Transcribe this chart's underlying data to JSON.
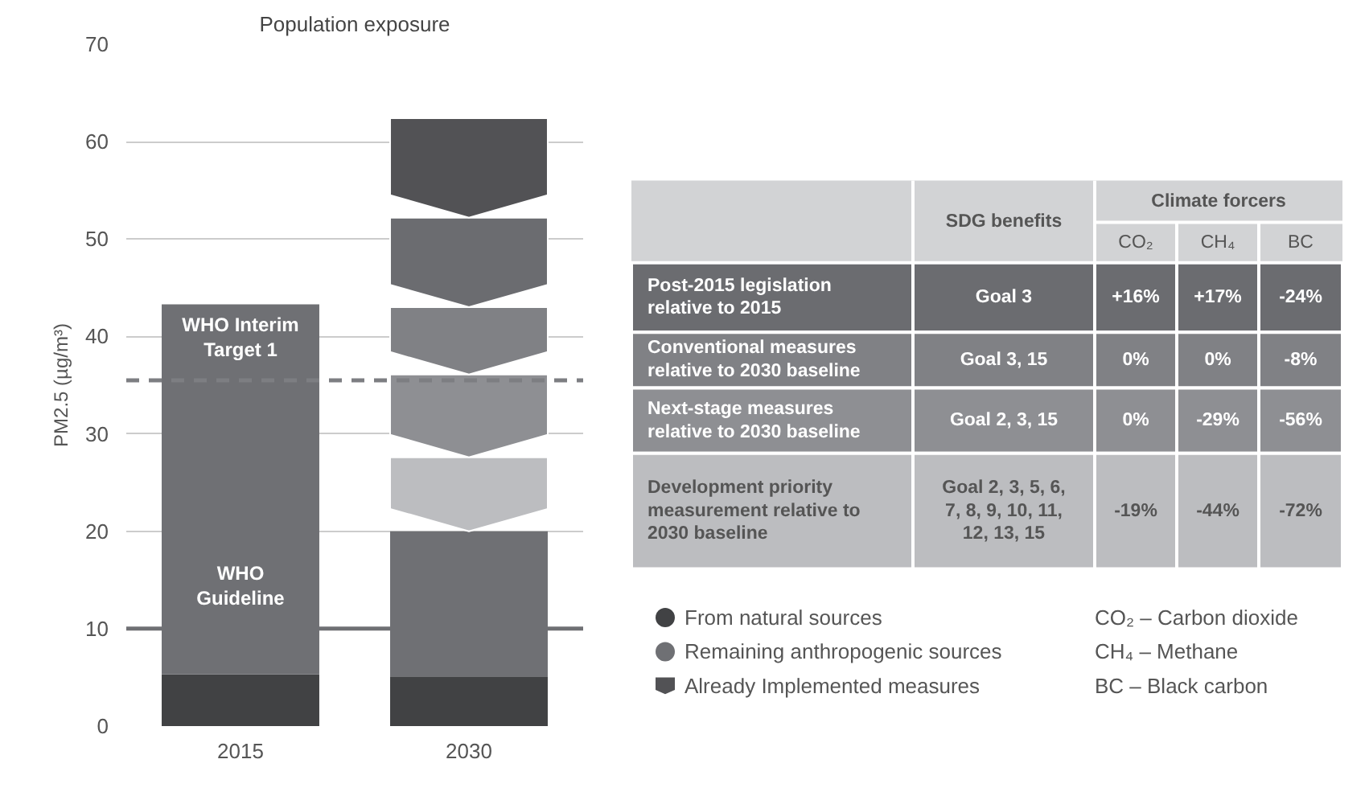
{
  "chart_data": {
    "type": "bar",
    "title": "Population exposure",
    "ylabel": "PM2.5 (µg/m³)",
    "categories": [
      "2015",
      "2030"
    ],
    "stacked": true,
    "series": [
      {
        "name": "From natural sources",
        "color": "#414244",
        "values": [
          5.3,
          5.1
        ]
      },
      {
        "name": "Remaining anthropogenic sources",
        "color": "#6f7074",
        "values": [
          38.0,
          14.9
        ]
      },
      {
        "color": "#bcbdc0",
        "values": [
          null,
          7.6
        ]
      },
      {
        "color": "#8e8f93",
        "values": [
          null,
          8.5
        ]
      },
      {
        "color": "#808185",
        "values": [
          null,
          6.9
        ]
      },
      {
        "color": "#6b6c70",
        "values": [
          null,
          9.2
        ]
      },
      {
        "name": "Already Implemented measures",
        "color": "#525255",
        "values": [
          null,
          10.2
        ]
      }
    ],
    "ylim": [
      0,
      70
    ],
    "yticks": [
      0,
      10,
      20,
      30,
      40,
      50,
      60,
      70
    ],
    "grid": "y",
    "legend": "bottom right",
    "ref_lines": [
      {
        "axis": "y",
        "value": 35.5,
        "label": "WHO Interim\nTarget 1",
        "line_style": "dashed",
        "color": "#7d7e82"
      },
      {
        "axis": "y",
        "value": 10,
        "label": "WHO\nGuideline",
        "line_style": "solid",
        "color": "#6f7074"
      }
    ],
    "annotations": [
      "SDG benefits",
      "Climate forcers",
      "CO₂",
      "CH₄",
      "BC",
      "Post-2015 legislation\nrelative to 2015",
      "Goal 3",
      "+16%",
      "+17%",
      "-24%",
      "Conventional measures\nrelative to 2030 baseline",
      "Goal 3, 15",
      "0%",
      "0%",
      "-8%",
      "Next-stage measures\nrelative to 2030 baseline",
      "Goal 2, 3, 15",
      "0%",
      "-29%",
      "-56%",
      "Development priority\nmeasurement relative to\n2030 baseline",
      "Goal 2, 3, 5, 6,\n7, 8, 9, 10, 11,\n12, 13, 15",
      "-19%",
      "-44%",
      "-72%",
      "CO₂ – Carbon dioxide",
      "CH₄ – Methane",
      "BC  – Black carbon"
    ]
  }
}
